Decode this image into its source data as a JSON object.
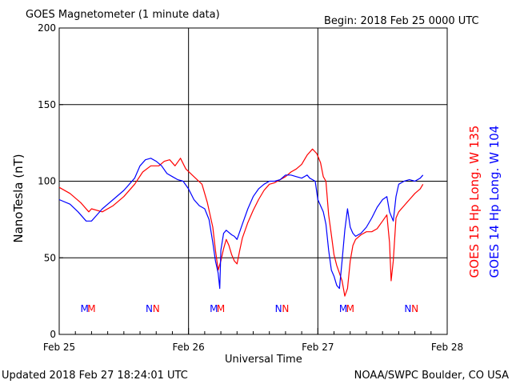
{
  "header": {
    "title": "GOES Magnetometer (1 minute data)",
    "begin": "Begin:  2018 Feb 25 0000 UTC"
  },
  "footer": {
    "updated": "Updated 2018 Feb 27 18:24:01 UTC",
    "credit": "NOAA/SWPC Boulder, CO USA"
  },
  "colors": {
    "goes15": "#ff0000",
    "goes14": "#0000ff",
    "axis": "#000000"
  },
  "chart_data": {
    "type": "line",
    "title": "GOES Magnetometer (1 minute data)",
    "xlabel": "Universal Time",
    "ylabel": "NanoTesla (nT)",
    "ylim": [
      0,
      200
    ],
    "xlim_hours": [
      0,
      72
    ],
    "yticks": [
      0,
      50,
      100,
      150,
      200
    ],
    "xtick_labels": [
      "Feb 25",
      "Feb 26",
      "Feb 27",
      "Feb 28"
    ],
    "grid": true,
    "legend_placement": "right-vertical",
    "mn_markers": [
      {
        "label": "M",
        "hour": 4.7,
        "series": "GOES 14 Hp"
      },
      {
        "label": "M",
        "hour": 6.0,
        "series": "GOES 15 Hp"
      },
      {
        "label": "N",
        "hour": 16.7,
        "series": "GOES 14 Hp"
      },
      {
        "label": "N",
        "hour": 18.0,
        "series": "GOES 15 Hp"
      },
      {
        "label": "M",
        "hour": 28.7,
        "series": "GOES 14 Hp"
      },
      {
        "label": "M",
        "hour": 30.0,
        "series": "GOES 15 Hp"
      },
      {
        "label": "N",
        "hour": 40.7,
        "series": "GOES 14 Hp"
      },
      {
        "label": "N",
        "hour": 42.0,
        "series": "GOES 15 Hp"
      },
      {
        "label": "M",
        "hour": 52.7,
        "series": "GOES 14 Hp"
      },
      {
        "label": "M",
        "hour": 54.0,
        "series": "GOES 15 Hp"
      },
      {
        "label": "N",
        "hour": 64.7,
        "series": "GOES 14 Hp"
      },
      {
        "label": "N",
        "hour": 66.0,
        "series": "GOES 15 Hp"
      }
    ],
    "series": [
      {
        "name": "GOES 15 Hp  Long. W 135",
        "color": "#ff0000",
        "points": [
          [
            0,
            96
          ],
          [
            2,
            92
          ],
          [
            4,
            86
          ],
          [
            5.5,
            80
          ],
          [
            6,
            82
          ],
          [
            8,
            80
          ],
          [
            10,
            84
          ],
          [
            12,
            90
          ],
          [
            14,
            98
          ],
          [
            15.5,
            106
          ],
          [
            17,
            110
          ],
          [
            18.5,
            110
          ],
          [
            19.5,
            113
          ],
          [
            20.5,
            114
          ],
          [
            21.5,
            110
          ],
          [
            22.5,
            115
          ],
          [
            23.5,
            108
          ],
          [
            25,
            103
          ],
          [
            26.5,
            98
          ],
          [
            27.5,
            86
          ],
          [
            28.5,
            70
          ],
          [
            29,
            55
          ],
          [
            29.5,
            42
          ],
          [
            30,
            48
          ],
          [
            30.5,
            56
          ],
          [
            31,
            62
          ],
          [
            31.5,
            58
          ],
          [
            32,
            52
          ],
          [
            32.5,
            48
          ],
          [
            33,
            46
          ],
          [
            33.5,
            55
          ],
          [
            34,
            63
          ],
          [
            35,
            73
          ],
          [
            36,
            81
          ],
          [
            37,
            88
          ],
          [
            38,
            94
          ],
          [
            39,
            98
          ],
          [
            40,
            99
          ],
          [
            41,
            101
          ],
          [
            42,
            103
          ],
          [
            43,
            106
          ],
          [
            44,
            108
          ],
          [
            45,
            111
          ],
          [
            46,
            117
          ],
          [
            47,
            121
          ],
          [
            47.8,
            118
          ],
          [
            48.5,
            112
          ],
          [
            49,
            103
          ],
          [
            49.5,
            100
          ],
          [
            50,
            78
          ],
          [
            50.5,
            65
          ],
          [
            51,
            52
          ],
          [
            51.5,
            45
          ],
          [
            52,
            40
          ],
          [
            52.5,
            35
          ],
          [
            53,
            25
          ],
          [
            53.5,
            30
          ],
          [
            54,
            48
          ],
          [
            54.5,
            58
          ],
          [
            55,
            62
          ],
          [
            56,
            65
          ],
          [
            57,
            67
          ],
          [
            58,
            67
          ],
          [
            59,
            69
          ],
          [
            60,
            74
          ],
          [
            60.8,
            78
          ],
          [
            61.3,
            60
          ],
          [
            61.6,
            35
          ],
          [
            62,
            48
          ],
          [
            62.5,
            76
          ],
          [
            63,
            80
          ],
          [
            64,
            84
          ],
          [
            65,
            88
          ],
          [
            66,
            92
          ],
          [
            67,
            95
          ],
          [
            67.5,
            98
          ]
        ]
      },
      {
        "name": "GOES 14 Hp  Long. W 104",
        "color": "#0000ff",
        "points": [
          [
            0,
            88
          ],
          [
            2,
            85
          ],
          [
            3.5,
            80
          ],
          [
            5,
            74
          ],
          [
            6,
            74
          ],
          [
            7,
            78
          ],
          [
            8,
            82
          ],
          [
            10,
            88
          ],
          [
            12,
            94
          ],
          [
            14,
            102
          ],
          [
            15,
            110
          ],
          [
            16,
            114
          ],
          [
            17,
            115
          ],
          [
            18,
            113
          ],
          [
            19,
            110
          ],
          [
            20,
            105
          ],
          [
            21,
            103
          ],
          [
            22,
            101
          ],
          [
            23,
            100
          ],
          [
            24,
            95
          ],
          [
            25,
            88
          ],
          [
            26,
            84
          ],
          [
            27,
            82
          ],
          [
            27.8,
            75
          ],
          [
            28.5,
            60
          ],
          [
            29,
            48
          ],
          [
            29.5,
            40
          ],
          [
            29.8,
            30
          ],
          [
            30,
            55
          ],
          [
            30.5,
            66
          ],
          [
            31,
            68
          ],
          [
            32,
            65
          ],
          [
            32.5,
            64
          ],
          [
            33,
            62
          ],
          [
            34,
            72
          ],
          [
            35,
            82
          ],
          [
            36,
            90
          ],
          [
            37,
            95
          ],
          [
            38,
            98
          ],
          [
            39,
            100
          ],
          [
            40,
            100
          ],
          [
            41,
            101
          ],
          [
            42,
            104
          ],
          [
            43,
            104
          ],
          [
            44,
            103
          ],
          [
            45,
            102
          ],
          [
            46,
            104
          ],
          [
            46.5,
            102
          ],
          [
            47.5,
            100
          ],
          [
            48,
            88
          ],
          [
            48.5,
            84
          ],
          [
            49,
            80
          ],
          [
            49.5,
            72
          ],
          [
            50,
            55
          ],
          [
            50.5,
            42
          ],
          [
            51,
            38
          ],
          [
            51.5,
            32
          ],
          [
            52,
            30
          ],
          [
            52.5,
            48
          ],
          [
            53,
            68
          ],
          [
            53.5,
            82
          ],
          [
            54,
            70
          ],
          [
            54.5,
            66
          ],
          [
            55,
            64
          ],
          [
            56,
            66
          ],
          [
            57,
            70
          ],
          [
            58,
            76
          ],
          [
            59,
            83
          ],
          [
            60,
            88
          ],
          [
            60.8,
            90
          ],
          [
            61.3,
            80
          ],
          [
            62,
            74
          ],
          [
            62.5,
            90
          ],
          [
            63,
            98
          ],
          [
            64,
            100
          ],
          [
            65,
            101
          ],
          [
            66,
            100
          ],
          [
            67,
            102
          ],
          [
            67.5,
            104
          ]
        ]
      }
    ]
  }
}
